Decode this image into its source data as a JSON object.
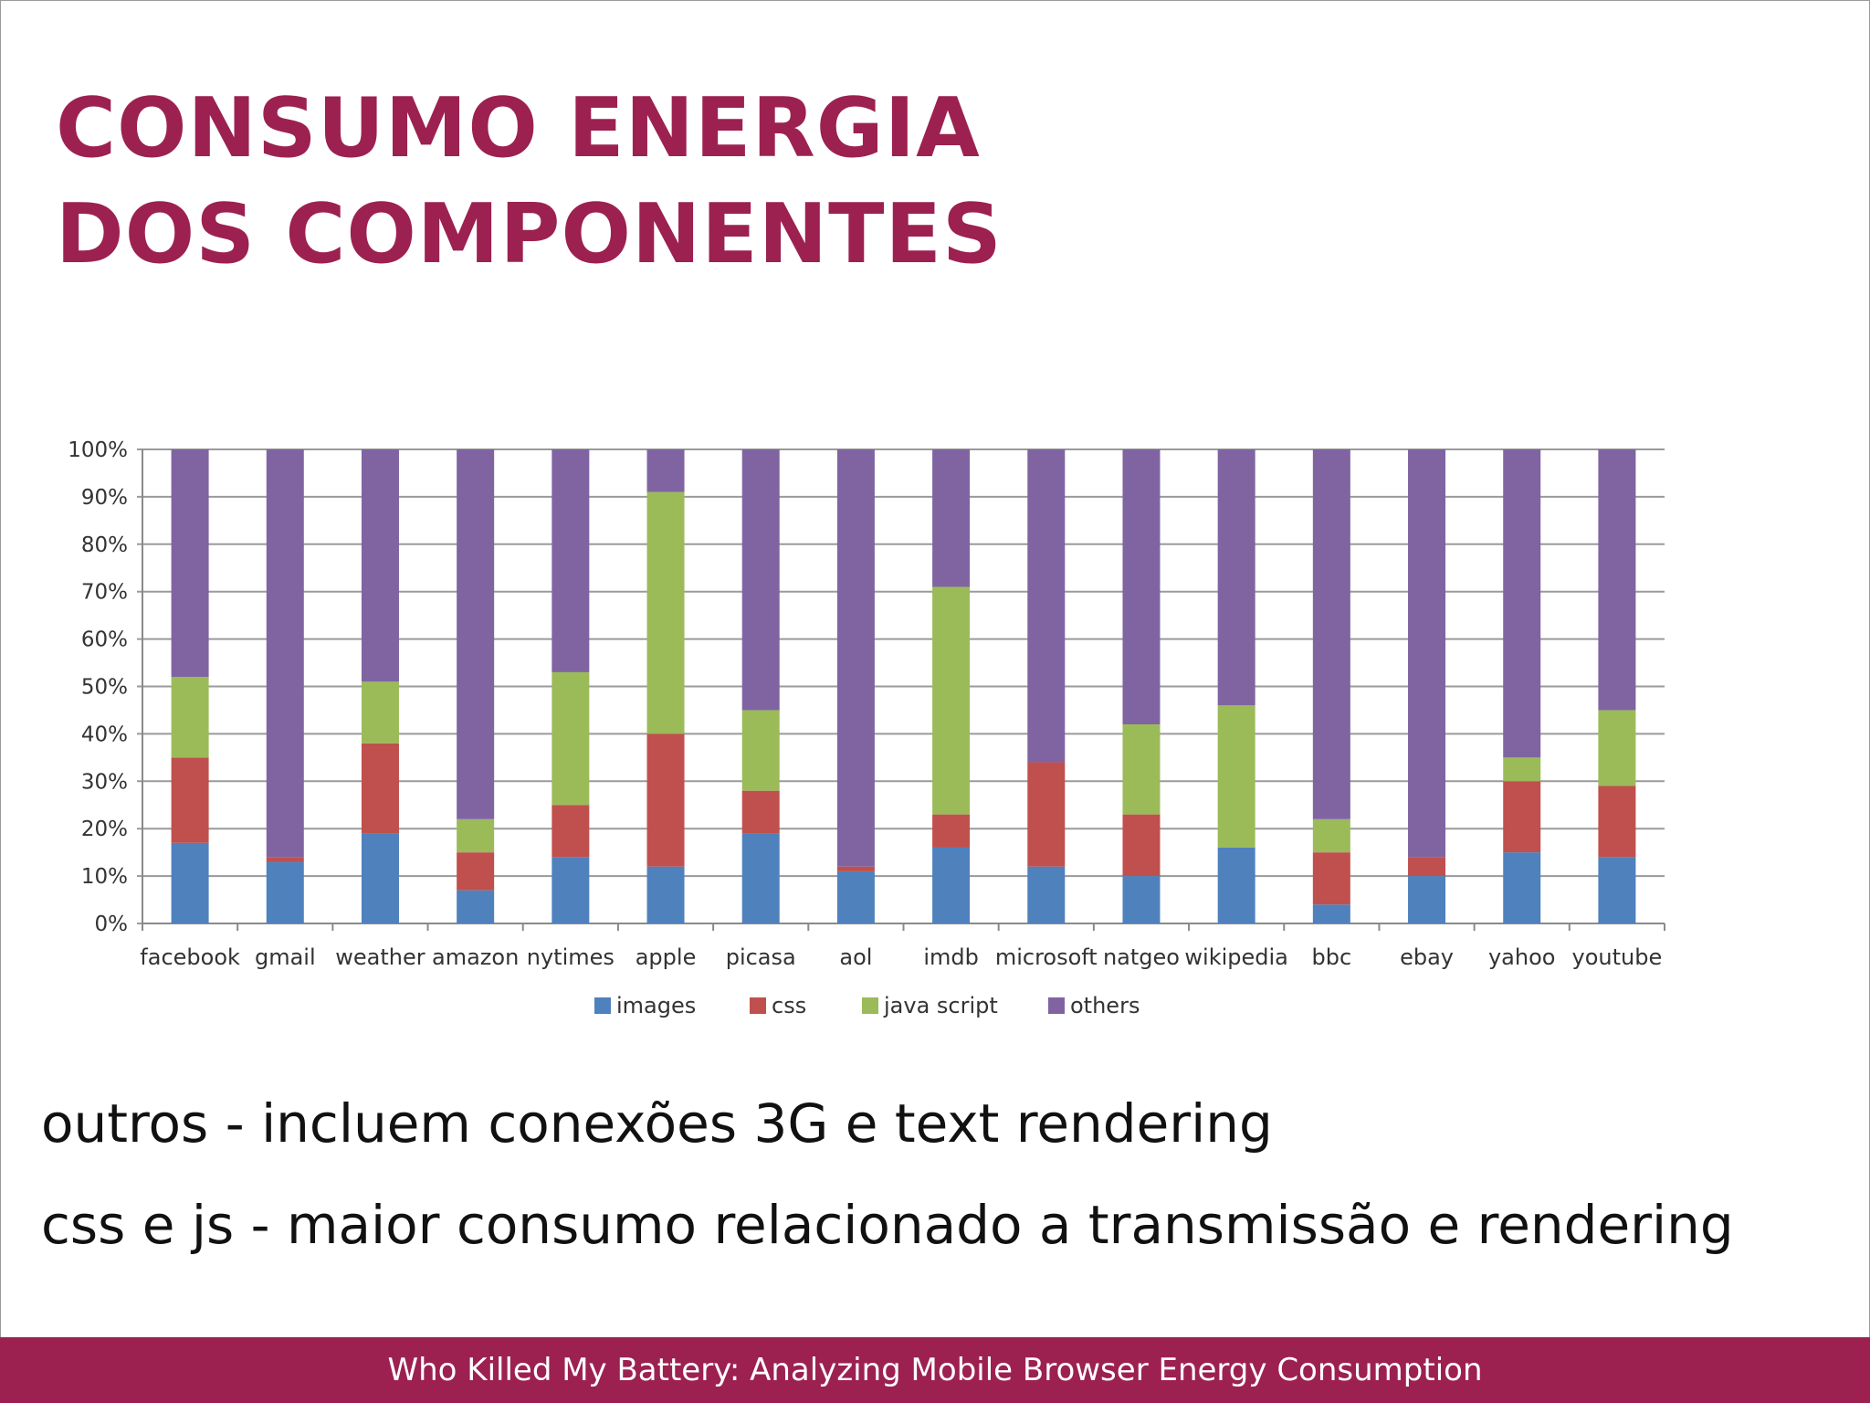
{
  "title": {
    "line1": "CONSUMO ENERGIA",
    "line2": "DOS COMPONENTES"
  },
  "bullets": [
    "outros - incluem conexões 3G e text rendering",
    "css e js - maior consumo relacionado a transmissão e rendering"
  ],
  "footer": "Who Killed My Battery: Analyzing Mobile Browser Energy Consumption",
  "chart_data": {
    "type": "bar",
    "stacked": true,
    "categories": [
      "facebook",
      "gmail",
      "weather",
      "amazon",
      "nytimes",
      "apple",
      "picasa",
      "aol",
      "imdb",
      "microsoft",
      "natgeo",
      "wikipedia",
      "bbc",
      "ebay",
      "yahoo",
      "youtube"
    ],
    "series": [
      {
        "name": "images",
        "color": "#4f81bd",
        "values": [
          17,
          13,
          19,
          7,
          14,
          12,
          19,
          11,
          16,
          12,
          10,
          16,
          4,
          10,
          15,
          14
        ]
      },
      {
        "name": "css",
        "color": "#c0504d",
        "values": [
          18,
          1,
          19,
          8,
          11,
          28,
          9,
          1,
          7,
          22,
          13,
          0,
          11,
          4,
          15,
          15
        ]
      },
      {
        "name": "java script",
        "color": "#9bbb59",
        "values": [
          17,
          0,
          13,
          7,
          28,
          51,
          17,
          0,
          48,
          0,
          19,
          30,
          7,
          0,
          5,
          16
        ]
      },
      {
        "name": "others",
        "color": "#8064a2",
        "values": [
          48,
          86,
          49,
          78,
          47,
          9,
          55,
          88,
          29,
          66,
          58,
          54,
          78,
          86,
          65,
          55
        ]
      }
    ],
    "yticks": [
      "0%",
      "10%",
      "20%",
      "30%",
      "40%",
      "50%",
      "60%",
      "70%",
      "80%",
      "90%",
      "100%"
    ],
    "ylim": [
      0,
      100
    ],
    "grid": true,
    "legend": "bottom"
  }
}
